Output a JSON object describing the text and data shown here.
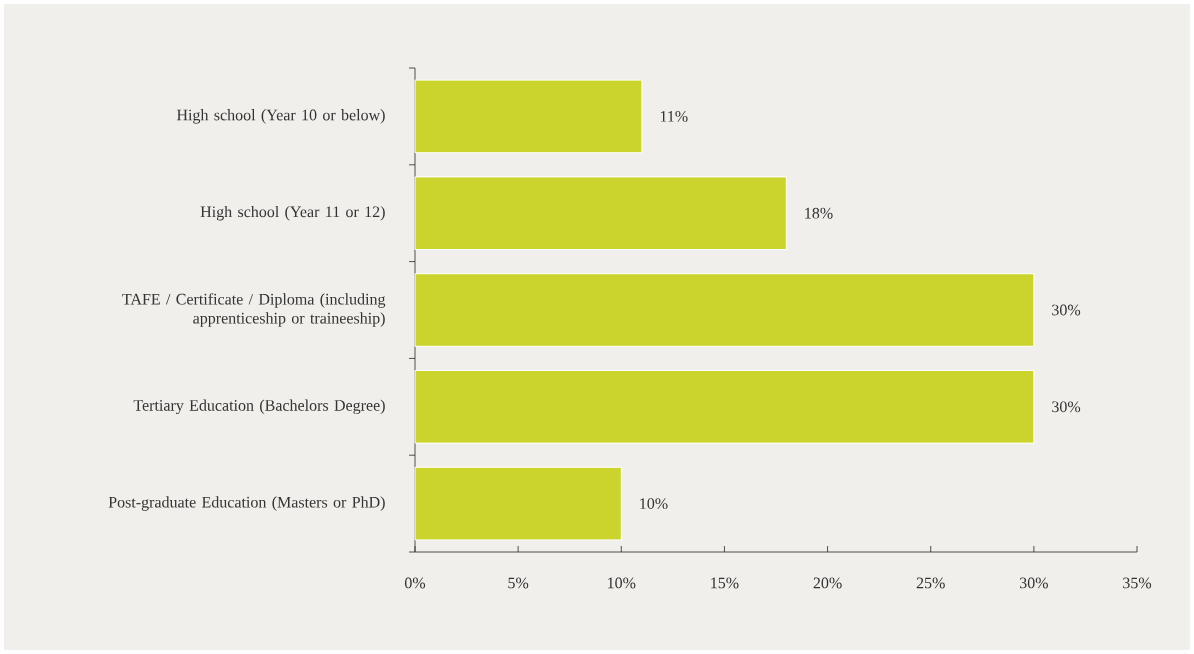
{
  "chart_data": {
    "type": "bar",
    "orientation": "horizontal",
    "categories": [
      "High school (Year 10 or below)",
      "High school (Year 11 or 12)",
      "TAFE / Certificate / Diploma (including apprenticeship or traineeship)",
      "Tertiary Education (Bachelors Degree)",
      "Post-graduate Education (Masters or PhD)"
    ],
    "values": [
      11,
      18,
      30,
      30,
      10
    ],
    "value_labels": [
      "11%",
      "18%",
      "30%",
      "30%",
      "10%"
    ],
    "color": "#cbd42c",
    "xlim": [
      0,
      35
    ],
    "xticks": [
      {
        "value": 0,
        "label": "0%"
      },
      {
        "value": 5,
        "label": "5%"
      },
      {
        "value": 10,
        "label": "10%"
      },
      {
        "value": 15,
        "label": "15%"
      },
      {
        "value": 20,
        "label": "20%"
      },
      {
        "value": 25,
        "label": "25%"
      },
      {
        "value": 30,
        "label": "30%"
      },
      {
        "value": 35,
        "label": "35%"
      }
    ],
    "data_labels": false
  }
}
